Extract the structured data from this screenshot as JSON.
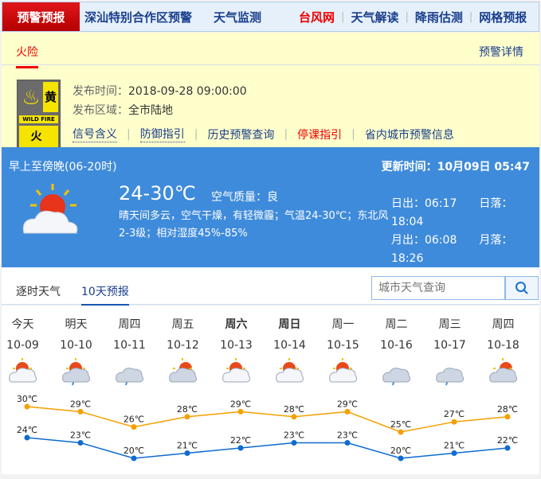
{
  "topnav": {
    "items": [
      "预警预报",
      "深汕特别合作区预警",
      "天气监测",
      "台风网",
      "天气解读",
      "降雨估测",
      "网格预报"
    ]
  },
  "warning": {
    "tab": "火险",
    "detail_link": "预警详情",
    "signal": {
      "level": "黄",
      "english": "WILD FIRE",
      "name": "火 险",
      "color": "#f5e400"
    },
    "publish_time_label": "发布时间：",
    "publish_time": "2018-09-28 09:00:00",
    "area_label": "发布区域：",
    "area": "全市陆地",
    "links": [
      "信号含义",
      "防御指引",
      "历史预警查询",
      "停课指引",
      "省内城市预警信息"
    ]
  },
  "current": {
    "period": "早上至傍晚(06-20时)",
    "update_label": "更新时间：",
    "update_time": "10月09日 05:47",
    "temp": "24-30℃",
    "aqi_label": "空气质量：",
    "aqi": "良",
    "desc": "晴天间多云，空气干燥，有轻微霾；气温24-30℃；东北风2-3级；相对湿度45%-85%",
    "sunrise_label": "日出：",
    "sunrise": "06:17",
    "sunset_label": "日落：",
    "sunset": "18:04",
    "moonrise_label": "月出：",
    "moonrise": "06:08",
    "moonset_label": "月落：",
    "moonset": "18:26"
  },
  "tabs": {
    "hourly": "逐时天气",
    "ten_day": "10天预报",
    "search_placeholder": "城市天气查询"
  },
  "forecast": {
    "days": [
      {
        "day": "今天",
        "date": "10-09",
        "icon": "sun-cloud",
        "bold": false
      },
      {
        "day": "明天",
        "date": "10-10",
        "icon": "cloud-sun-rain",
        "bold": false
      },
      {
        "day": "周四",
        "date": "10-11",
        "icon": "cloud-rain",
        "bold": false
      },
      {
        "day": "周五",
        "date": "10-12",
        "icon": "cloudy",
        "bold": false
      },
      {
        "day": "周六",
        "date": "10-13",
        "icon": "sun-cloud",
        "bold": true
      },
      {
        "day": "周日",
        "date": "10-14",
        "icon": "sun-cloud",
        "bold": true
      },
      {
        "day": "周一",
        "date": "10-15",
        "icon": "sun-cloud",
        "bold": false
      },
      {
        "day": "周二",
        "date": "10-16",
        "icon": "cloud-rain",
        "bold": false
      },
      {
        "day": "周三",
        "date": "10-17",
        "icon": "cloud-rain",
        "bold": false
      },
      {
        "day": "周四",
        "date": "10-18",
        "icon": "cloudy",
        "bold": false
      }
    ]
  },
  "chart_data": {
    "type": "line",
    "categories": [
      "10-09",
      "10-10",
      "10-11",
      "10-12",
      "10-13",
      "10-14",
      "10-15",
      "10-16",
      "10-17",
      "10-18"
    ],
    "unit": "℃",
    "series": [
      {
        "values": [
          30,
          29,
          26,
          28,
          29,
          28,
          29,
          25,
          27,
          28
        ],
        "color": "#f5a000"
      },
      {
        "values": [
          24,
          23,
          20,
          21,
          22,
          23,
          23,
          20,
          21,
          22
        ],
        "color": "#0e6bd0"
      }
    ]
  }
}
